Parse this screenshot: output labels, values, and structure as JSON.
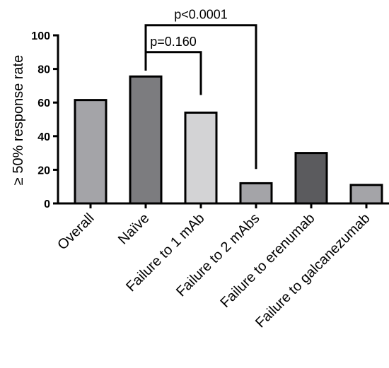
{
  "chart_data": {
    "type": "bar",
    "title": "",
    "xlabel": "",
    "ylabel": "≥ 50% response rate",
    "ylim": [
      0,
      100
    ],
    "yticks": [
      "0",
      "20",
      "40",
      "60",
      "80",
      "100"
    ],
    "grid": false,
    "categories": [
      "Overall",
      "Naïve",
      "Failure to 1 mAb",
      "Failure to 2 mAbs",
      "Failure to erenumab",
      "Failure to galcanezumab"
    ],
    "values": [
      61.5,
      75.5,
      54,
      12,
      30,
      11
    ],
    "bar_colors": [
      "#a4a4a8",
      "#7c7c7f",
      "#d3d3d5",
      "#a4a4a8",
      "#5b5b5e",
      "#a4a4a8"
    ],
    "annotations": [
      {
        "label": "p<0.0001",
        "from": "Naïve",
        "to": "Failure to 2 mAbs",
        "top_value": 106,
        "from_value": 79,
        "to_value": 20.5
      },
      {
        "label": "p=0.160",
        "from": "Naïve",
        "to": "Failure to 1 mAb",
        "top_value": 90,
        "from_value": 79,
        "to_value": 64.5
      }
    ]
  }
}
